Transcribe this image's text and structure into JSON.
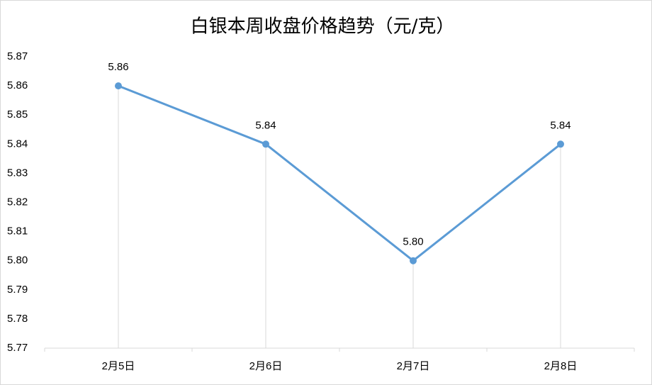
{
  "chart_data": {
    "type": "line",
    "title": "白银本周收盘价格趋势（元/克）",
    "categories": [
      "2月5日",
      "2月6日",
      "2月7日",
      "2月8日"
    ],
    "values": [
      5.86,
      5.84,
      5.8,
      5.84
    ],
    "value_labels": [
      "5.86",
      "5.84",
      "5.80",
      "5.84"
    ],
    "color": "#5b9bd5",
    "ylim": [
      5.77,
      5.87
    ],
    "yticks": [
      5.77,
      5.78,
      5.79,
      {
        "value": 5.8,
        "label": "5.80"
      },
      5.81,
      5.82,
      5.83,
      5.84,
      5.85,
      5.86,
      5.87
    ],
    "drop_lines": true
  }
}
